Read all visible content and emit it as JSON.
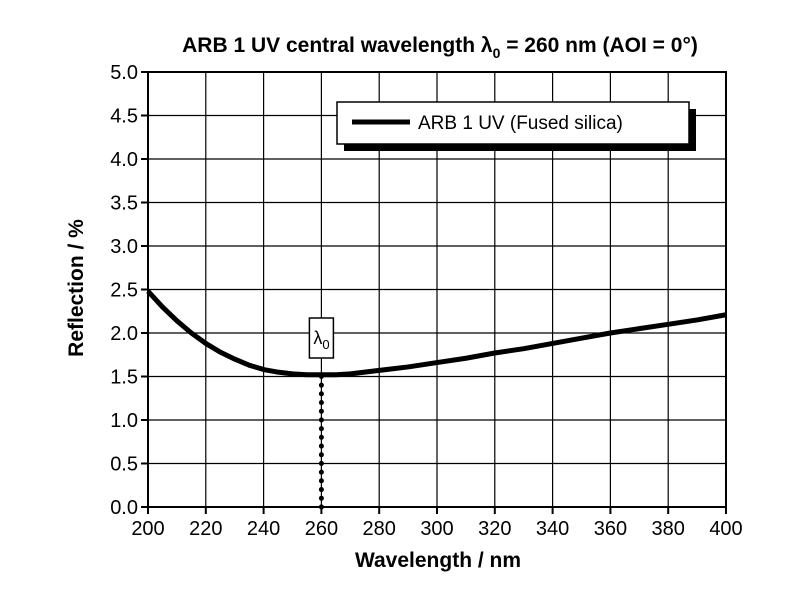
{
  "chart_data": {
    "type": "line",
    "title": {
      "prefix": "ARB 1 UV central wavelength ",
      "symbol": "λ",
      "subscript": "0",
      "suffix": " = 260 nm (AOI = 0°)"
    },
    "xlabel": "Wavelength / nm",
    "ylabel": "Reflection / %",
    "xlim": [
      200,
      400
    ],
    "ylim": [
      0,
      5
    ],
    "x_ticks": [
      200,
      220,
      240,
      260,
      280,
      300,
      320,
      340,
      360,
      380,
      400
    ],
    "x_tick_labels": [
      "200",
      "220",
      "240",
      "260",
      "280",
      "300",
      "320",
      "340",
      "360",
      "380",
      "400"
    ],
    "y_ticks": [
      0,
      0.5,
      1,
      1.5,
      2,
      2.5,
      3,
      3.5,
      4,
      4.5,
      5
    ],
    "y_tick_labels": [
      "0.0",
      "0.5",
      "1.0",
      "1.5",
      "2.0",
      "2.5",
      "3.0",
      "3.5",
      "4.0",
      "4.5",
      "5.0"
    ],
    "grid": true,
    "legend": {
      "placement": "top-right",
      "entries": [
        "ARB 1 UV (Fused silica)"
      ]
    },
    "series": [
      {
        "name": "ARB 1 UV (Fused silica)",
        "color": "#000000",
        "x": [
          200,
          205,
          210,
          215,
          220,
          225,
          230,
          235,
          240,
          245,
          250,
          255,
          260,
          265,
          270,
          280,
          290,
          300,
          310,
          320,
          330,
          340,
          350,
          360,
          370,
          380,
          390,
          400
        ],
        "y": [
          2.48,
          2.3,
          2.14,
          2.0,
          1.88,
          1.78,
          1.7,
          1.63,
          1.58,
          1.55,
          1.53,
          1.52,
          1.52,
          1.52,
          1.53,
          1.57,
          1.61,
          1.66,
          1.71,
          1.77,
          1.82,
          1.88,
          1.94,
          2.0,
          2.05,
          2.1,
          2.15,
          2.21
        ]
      }
    ],
    "annotation": {
      "symbol": "λ",
      "subscript": "0",
      "x": 260,
      "y_top": 1.52
    }
  }
}
